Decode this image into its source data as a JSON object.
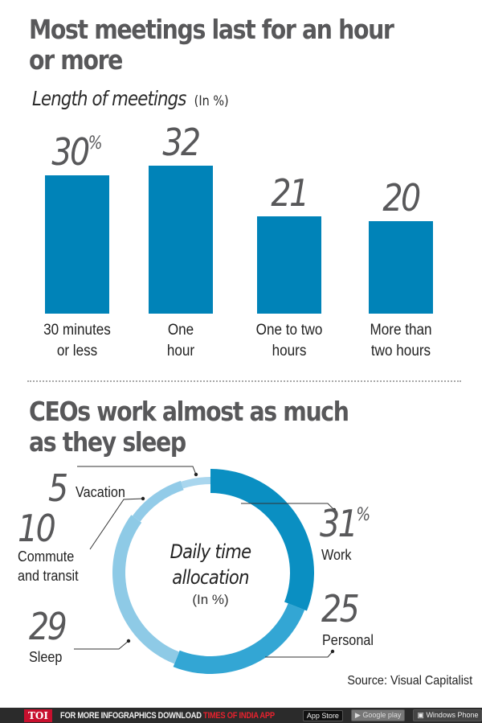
{
  "section1": {
    "headline_line1": "Most meetings last for an hour",
    "headline_line2": "or more",
    "subtitle": "Length of meetings",
    "unit_note": "(In %)"
  },
  "section2": {
    "headline_line1": "CEOs work almost as much",
    "headline_line2": "as they sleep",
    "center_title_line1": "Daily time",
    "center_title_line2": "allocation",
    "center_unit": "(In %)"
  },
  "source": "Source: Visual Capitalist",
  "footer": {
    "logo": "TOI",
    "text": "FOR MORE  INFOGRAPHICS DOWNLOAD ",
    "accent_text": "TIMES OF INDIA  APP",
    "app_store": "App Store",
    "google_play": "Google play",
    "windows_phone": "Windows Phone"
  },
  "colors": {
    "bar": "#0083b8",
    "work": "#0a8fc2",
    "personal": "#33a6d4",
    "sleep": "#8ecae6",
    "commute": "#92cbe8",
    "vacation": "#a9d6ee",
    "headline": "#58585a"
  },
  "chart_data": [
    {
      "type": "bar",
      "title": "Most meetings last for an hour or more",
      "subtitle": "Length of meetings (In %)",
      "categories": [
        "30 minutes or less",
        "One hour",
        "One to two hours",
        "More than two hours"
      ],
      "category_lines": [
        [
          "30 minutes",
          "or less"
        ],
        [
          "One",
          "hour"
        ],
        [
          "One to two",
          "hours"
        ],
        [
          "More than",
          "two hours"
        ]
      ],
      "values": [
        30,
        32,
        21,
        20
      ],
      "value_labels": [
        "30",
        "32",
        "21",
        "20"
      ],
      "first_label_suffix": "%",
      "xlabel": "",
      "ylabel": "",
      "grid": false
    },
    {
      "type": "pie",
      "variant": "donut",
      "title": "CEOs work almost as much as they sleep",
      "center_label": "Daily time allocation (In %)",
      "categories": [
        "Work",
        "Personal",
        "Sleep",
        "Commute and transit",
        "Vacation"
      ],
      "values": [
        31,
        25,
        29,
        10,
        5
      ],
      "label_lines": [
        [
          "Work"
        ],
        [
          "Personal"
        ],
        [
          "Sleep"
        ],
        [
          "Commute",
          "and transit"
        ],
        [
          "Vacation"
        ]
      ],
      "first_label_suffix": "%"
    }
  ]
}
